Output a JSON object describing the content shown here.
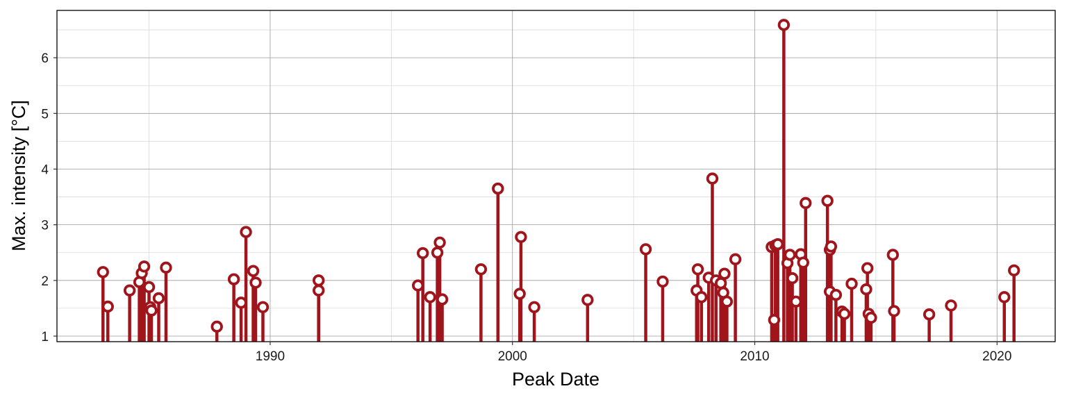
{
  "chart_data": {
    "type": "lollipop",
    "title": "",
    "xlabel": "Peak Date",
    "ylabel": "Max. intensity [°C]",
    "xlim": [
      1981.2,
      2022.4
    ],
    "ylim": [
      0.9,
      6.85
    ],
    "x_ticks": [
      1990,
      2000,
      2010,
      2020
    ],
    "y_ticks": [
      1,
      2,
      3,
      4,
      5,
      6
    ],
    "baseline": 1,
    "grid": true,
    "legend": "none",
    "colors": {
      "stem": "#a0151c",
      "marker_fill": "#ffffff",
      "grid_major": "#9a9a9a",
      "grid_minor": "#d9d9d9"
    },
    "points": [
      {
        "x": 1983.1,
        "y": 2.15
      },
      {
        "x": 1983.3,
        "y": 1.53
      },
      {
        "x": 1984.2,
        "y": 1.82
      },
      {
        "x": 1984.6,
        "y": 1.97
      },
      {
        "x": 1984.7,
        "y": 2.13
      },
      {
        "x": 1984.8,
        "y": 2.25
      },
      {
        "x": 1985.0,
        "y": 1.88
      },
      {
        "x": 1985.05,
        "y": 1.52
      },
      {
        "x": 1985.1,
        "y": 1.46
      },
      {
        "x": 1985.4,
        "y": 1.68
      },
      {
        "x": 1985.7,
        "y": 2.23
      },
      {
        "x": 1987.8,
        "y": 1.17
      },
      {
        "x": 1988.5,
        "y": 2.02
      },
      {
        "x": 1988.8,
        "y": 1.6
      },
      {
        "x": 1989.0,
        "y": 2.87
      },
      {
        "x": 1989.3,
        "y": 2.17
      },
      {
        "x": 1989.4,
        "y": 1.96
      },
      {
        "x": 1989.7,
        "y": 1.52
      },
      {
        "x": 1992.0,
        "y": 2.0
      },
      {
        "x": 1992.0,
        "y": 1.82
      },
      {
        "x": 1996.1,
        "y": 1.91
      },
      {
        "x": 1996.3,
        "y": 2.49
      },
      {
        "x": 1996.6,
        "y": 1.7
      },
      {
        "x": 1996.9,
        "y": 2.5
      },
      {
        "x": 1997.0,
        "y": 2.68
      },
      {
        "x": 1997.1,
        "y": 1.66
      },
      {
        "x": 1998.7,
        "y": 2.2
      },
      {
        "x": 1999.4,
        "y": 3.65
      },
      {
        "x": 2000.3,
        "y": 1.76
      },
      {
        "x": 2000.35,
        "y": 2.78
      },
      {
        "x": 2000.9,
        "y": 1.52
      },
      {
        "x": 2003.1,
        "y": 1.65
      },
      {
        "x": 2005.5,
        "y": 2.56
      },
      {
        "x": 2006.2,
        "y": 1.98
      },
      {
        "x": 2007.6,
        "y": 1.82
      },
      {
        "x": 2007.65,
        "y": 2.2
      },
      {
        "x": 2007.8,
        "y": 1.7
      },
      {
        "x": 2008.1,
        "y": 2.05
      },
      {
        "x": 2008.25,
        "y": 3.83
      },
      {
        "x": 2008.4,
        "y": 2.0
      },
      {
        "x": 2008.6,
        "y": 1.95
      },
      {
        "x": 2008.7,
        "y": 1.78
      },
      {
        "x": 2008.75,
        "y": 2.12
      },
      {
        "x": 2008.85,
        "y": 1.62
      },
      {
        "x": 2009.2,
        "y": 2.38
      },
      {
        "x": 2010.7,
        "y": 2.6
      },
      {
        "x": 2010.8,
        "y": 1.29
      },
      {
        "x": 2010.85,
        "y": 2.63
      },
      {
        "x": 2010.95,
        "y": 2.65
      },
      {
        "x": 2011.2,
        "y": 6.59
      },
      {
        "x": 2011.35,
        "y": 2.31
      },
      {
        "x": 2011.45,
        "y": 2.46
      },
      {
        "x": 2011.55,
        "y": 2.04
      },
      {
        "x": 2011.7,
        "y": 1.62
      },
      {
        "x": 2011.9,
        "y": 2.47
      },
      {
        "x": 2012.0,
        "y": 2.32
      },
      {
        "x": 2012.1,
        "y": 3.39
      },
      {
        "x": 2013.0,
        "y": 3.43
      },
      {
        "x": 2013.1,
        "y": 1.8
      },
      {
        "x": 2013.1,
        "y": 2.55
      },
      {
        "x": 2013.15,
        "y": 2.61
      },
      {
        "x": 2013.35,
        "y": 1.74
      },
      {
        "x": 2013.6,
        "y": 1.44
      },
      {
        "x": 2013.7,
        "y": 1.4
      },
      {
        "x": 2014.0,
        "y": 1.94
      },
      {
        "x": 2014.6,
        "y": 1.84
      },
      {
        "x": 2014.65,
        "y": 2.22
      },
      {
        "x": 2014.7,
        "y": 1.4
      },
      {
        "x": 2014.8,
        "y": 1.33
      },
      {
        "x": 2015.7,
        "y": 2.46
      },
      {
        "x": 2015.75,
        "y": 1.45
      },
      {
        "x": 2017.2,
        "y": 1.39
      },
      {
        "x": 2018.1,
        "y": 1.55
      },
      {
        "x": 2020.3,
        "y": 1.7
      },
      {
        "x": 2020.7,
        "y": 2.18
      }
    ]
  }
}
